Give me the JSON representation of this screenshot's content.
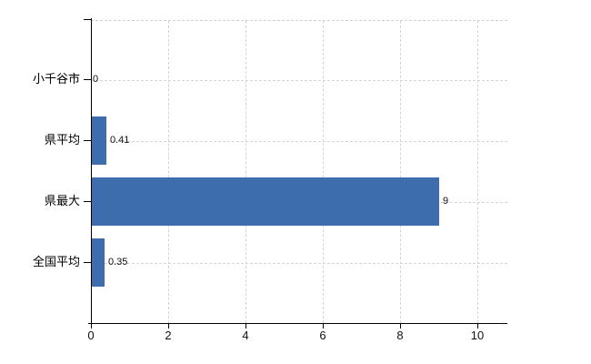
{
  "chart": {
    "background_color": "#ffffff",
    "bar_color": "#3d6dad",
    "grid_color": "#d4d6d1",
    "axis_color": "#000000",
    "text_color": "#000000"
  },
  "chart_data": {
    "type": "bar",
    "orientation": "horizontal",
    "title": "",
    "xlabel": "",
    "ylabel": "",
    "categories": [
      "小千谷市",
      "県平均",
      "県最大",
      "全国平均"
    ],
    "values": [
      0,
      0.41,
      9,
      0.35
    ],
    "value_labels": [
      "0",
      "0.41",
      "9",
      "0.35"
    ],
    "x_ticks": [
      "0",
      "2",
      "4",
      "6",
      "8",
      "10"
    ],
    "x_tick_values": [
      0,
      2,
      4,
      6,
      8,
      10
    ],
    "xlim": [
      0,
      10.8
    ],
    "grid": "on",
    "legend": "none"
  }
}
